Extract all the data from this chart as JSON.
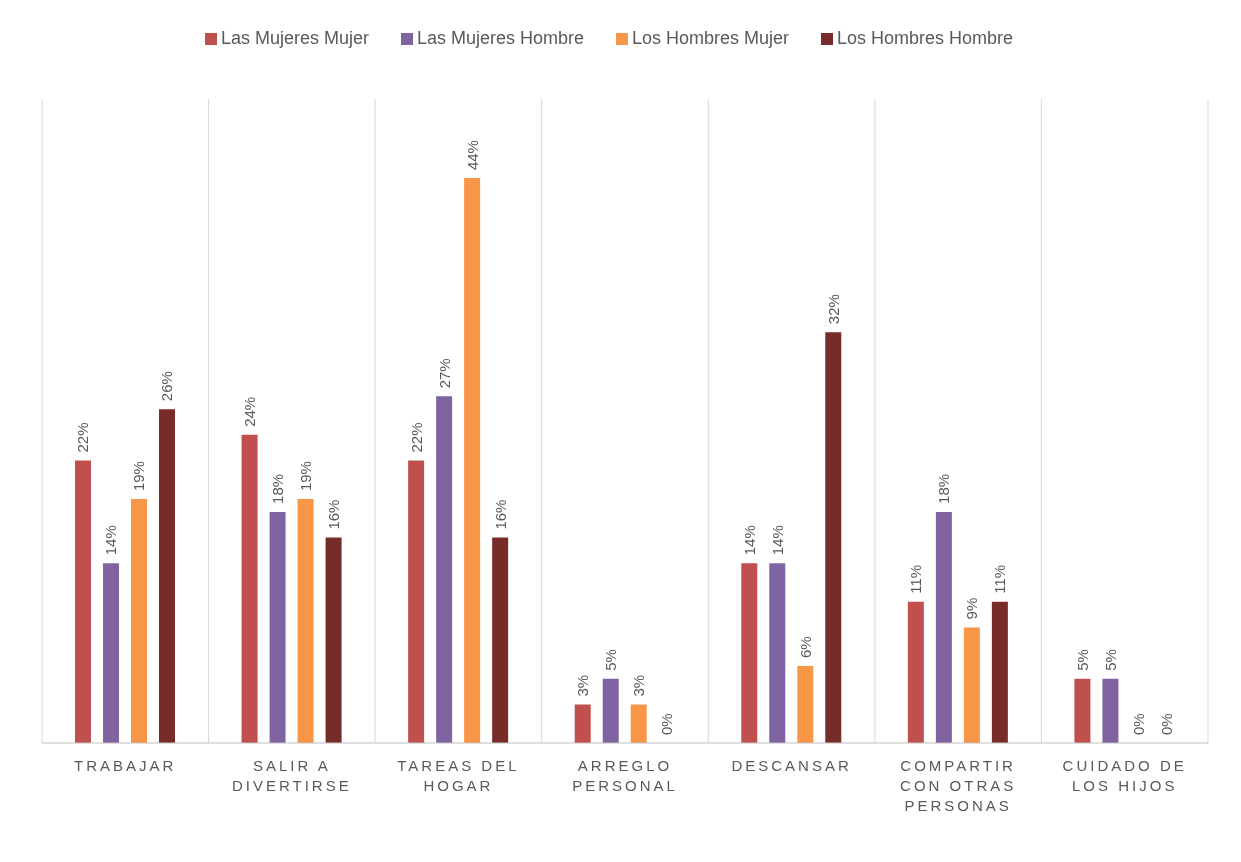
{
  "chart_data": {
    "type": "bar",
    "categories": [
      "TRABAJAR",
      "SALIR A DIVERTIRSE",
      "TAREAS DEL HOGAR",
      "ARREGLO PERSONAL",
      "DESCANSAR",
      "COMPARTIR CON OTRAS PERSONAS",
      "CUIDADO DE LOS HIJOS"
    ],
    "series": [
      {
        "name": "Las Mujeres Mujer",
        "color": "#c0504d",
        "values": [
          22,
          24,
          22,
          3,
          14,
          11,
          5
        ],
        "value_labels": [
          "22%",
          "24%",
          "22%",
          "3%",
          "14%",
          "11%",
          "5%"
        ]
      },
      {
        "name": "Las Mujeres Hombre",
        "color": "#8064a2",
        "values": [
          14,
          18,
          27,
          5,
          14,
          18,
          5
        ],
        "value_labels": [
          "14%",
          "18%",
          "27%",
          "5%",
          "14%",
          "18%",
          "5%"
        ]
      },
      {
        "name": "Los Hombres Mujer",
        "color": "#f79646",
        "values": [
          19,
          19,
          44,
          3,
          6,
          9,
          0
        ],
        "value_labels": [
          "19%",
          "19%",
          "44%",
          "3%",
          "6%",
          "9%",
          "0%"
        ]
      },
      {
        "name": "Los Hombres Hombre",
        "color": "#772c2a",
        "values": [
          26,
          16,
          16,
          0,
          32,
          11,
          0
        ],
        "value_labels": [
          "26%",
          "16%",
          "16%",
          "0%",
          "32%",
          "11%",
          "0%"
        ]
      }
    ],
    "grid": "x",
    "legend": "top"
  }
}
